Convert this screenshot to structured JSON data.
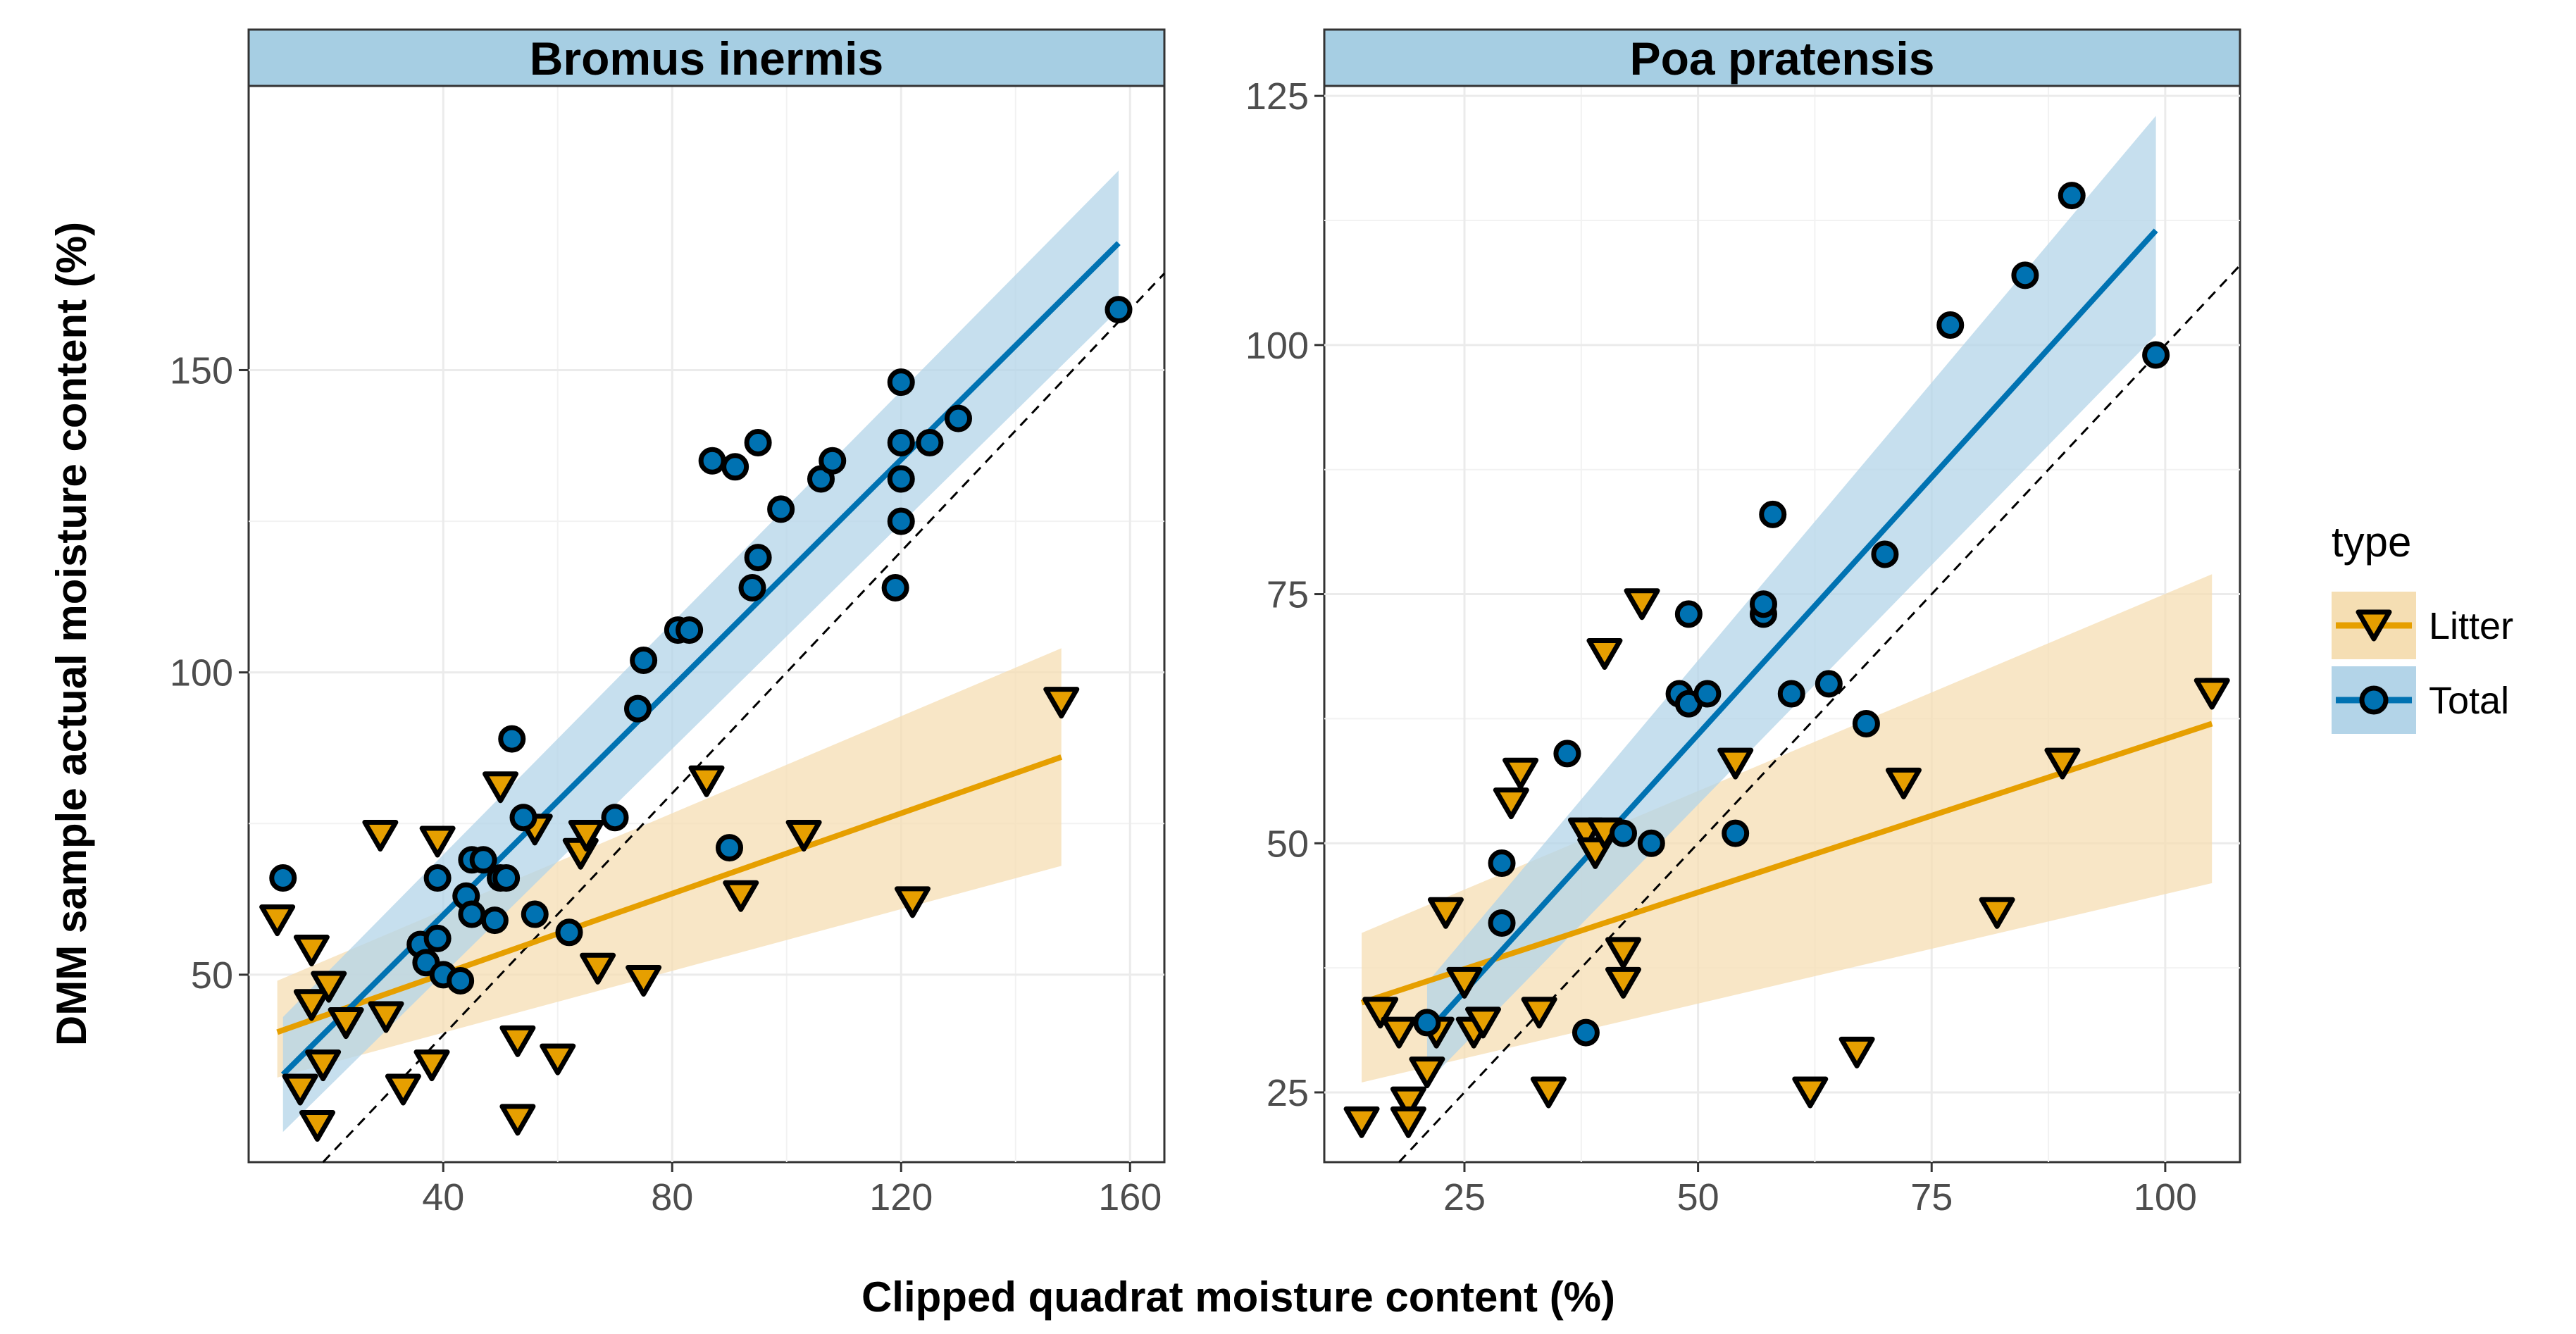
{
  "chart_data": {
    "type": "scatter",
    "ylabel": "DMM sample actual moisture content (%)",
    "xlabel": "Clipped quadrat moisture content (%)",
    "legend": {
      "title": "type",
      "placement": "right",
      "entries": [
        {
          "name": "Litter",
          "color": "#E69F00",
          "ribbon": "#F5DEB3",
          "marker": "triangle-down"
        },
        {
          "name": "Total",
          "color": "#0072B2",
          "ribbon": "#B3D4E8",
          "marker": "circle"
        }
      ]
    },
    "panels": [
      {
        "title": "Bromus inermis",
        "xlim": [
          6,
          166
        ],
        "ylim": [
          19,
          197
        ],
        "xticks": [
          40,
          80,
          120,
          160
        ],
        "yticks": [
          50,
          100,
          150
        ],
        "identity_line": true,
        "series": [
          {
            "name": "Litter",
            "fit": {
              "x": [
                11,
                148
              ],
              "y": [
                40.5,
                86
              ]
            },
            "ci_low": [
              33,
              68
            ],
            "ci_high": [
              49,
              104
            ],
            "points": [
              [
                11,
                59
              ],
              [
                15,
                31
              ],
              [
                17,
                54
              ],
              [
                17,
                45
              ],
              [
                18,
                25
              ],
              [
                19,
                35
              ],
              [
                20,
                48
              ],
              [
                23,
                42
              ],
              [
                29,
                73
              ],
              [
                30,
                43
              ],
              [
                33,
                31
              ],
              [
                38,
                35
              ],
              [
                39,
                72
              ],
              [
                50,
                81
              ],
              [
                53,
                39
              ],
              [
                53,
                26
              ],
              [
                56,
                74
              ],
              [
                60,
                36
              ],
              [
                64,
                70
              ],
              [
                65,
                73
              ],
              [
                67,
                51
              ],
              [
                75,
                49
              ],
              [
                86,
                82
              ],
              [
                92,
                63
              ],
              [
                103,
                73
              ],
              [
                122,
                62
              ],
              [
                148,
                95
              ]
            ]
          },
          {
            "name": "Total",
            "fit": {
              "x": [
                12,
                158
              ],
              "y": [
                33.5,
                171
              ]
            },
            "ci_low": [
              24,
              160
            ],
            "ci_high": [
              43,
              183
            ],
            "points": [
              [
                12,
                66
              ],
              [
                36,
                55
              ],
              [
                37,
                52
              ],
              [
                39,
                66
              ],
              [
                39,
                56
              ],
              [
                40,
                50
              ],
              [
                43,
                49
              ],
              [
                44,
                63
              ],
              [
                45,
                69
              ],
              [
                45,
                60
              ],
              [
                47,
                69
              ],
              [
                49,
                59
              ],
              [
                50,
                66
              ],
              [
                51,
                66
              ],
              [
                52,
                89
              ],
              [
                54,
                76
              ],
              [
                56,
                60
              ],
              [
                62,
                57
              ],
              [
                70,
                76
              ],
              [
                74,
                94
              ],
              [
                75,
                102
              ],
              [
                81,
                107
              ],
              [
                83,
                107
              ],
              [
                87,
                135
              ],
              [
                90,
                71
              ],
              [
                91,
                134
              ],
              [
                94,
                114
              ],
              [
                95,
                119
              ],
              [
                95,
                138
              ],
              [
                99,
                127
              ],
              [
                106,
                132
              ],
              [
                108,
                135
              ],
              [
                119,
                114
              ],
              [
                120,
                138
              ],
              [
                120,
                132
              ],
              [
                120,
                125
              ],
              [
                120,
                148
              ],
              [
                125,
                138
              ],
              [
                130,
                142
              ],
              [
                158,
                160
              ]
            ]
          }
        ]
      },
      {
        "title": "Poa pratensis",
        "xlim": [
          10,
          108
        ],
        "ylim": [
          18,
          126
        ],
        "xticks": [
          25,
          50,
          75,
          100
        ],
        "yticks": [
          25,
          50,
          75,
          100,
          125
        ],
        "identity_line": true,
        "series": [
          {
            "name": "Litter",
            "fit": {
              "x": [
                14,
                105
              ],
              "y": [
                34,
                62
              ]
            },
            "ci_low": [
              26,
              46
            ],
            "ci_high": [
              41,
              77
            ],
            "points": [
              [
                14,
                22
              ],
              [
                16,
                33
              ],
              [
                18,
                31
              ],
              [
                19,
                24
              ],
              [
                19,
                22
              ],
              [
                21,
                27
              ],
              [
                22,
                31
              ],
              [
                23,
                43
              ],
              [
                25,
                36
              ],
              [
                26,
                31
              ],
              [
                27,
                32
              ],
              [
                30,
                54
              ],
              [
                31,
                57
              ],
              [
                33,
                33
              ],
              [
                34,
                25
              ],
              [
                38,
                51
              ],
              [
                39,
                49
              ],
              [
                40,
                51
              ],
              [
                40,
                69
              ],
              [
                42,
                36
              ],
              [
                42,
                39
              ],
              [
                44,
                74
              ],
              [
                54,
                58
              ],
              [
                62,
                25
              ],
              [
                67,
                29
              ],
              [
                72,
                56
              ],
              [
                82,
                43
              ],
              [
                89,
                58
              ],
              [
                105,
                65
              ]
            ]
          },
          {
            "name": "Total",
            "fit": {
              "x": [
                21,
                99
              ],
              "y": [
                31,
                111.5
              ]
            },
            "ci_low": [
              26,
              101
            ],
            "ci_high": [
              36,
              123
            ],
            "points": [
              [
                21,
                32
              ],
              [
                29,
                48
              ],
              [
                29,
                42
              ],
              [
                36,
                59
              ],
              [
                38,
                31
              ],
              [
                42,
                51
              ],
              [
                45,
                50
              ],
              [
                48,
                65
              ],
              [
                49,
                64
              ],
              [
                49,
                73
              ],
              [
                51,
                65
              ],
              [
                54,
                51
              ],
              [
                57,
                73
              ],
              [
                57,
                74
              ],
              [
                58,
                83
              ],
              [
                60,
                65
              ],
              [
                64,
                66
              ],
              [
                68,
                62
              ],
              [
                70,
                79
              ],
              [
                77,
                102
              ],
              [
                85,
                107
              ],
              [
                90,
                115
              ],
              [
                99,
                99
              ]
            ]
          }
        ]
      }
    ]
  }
}
